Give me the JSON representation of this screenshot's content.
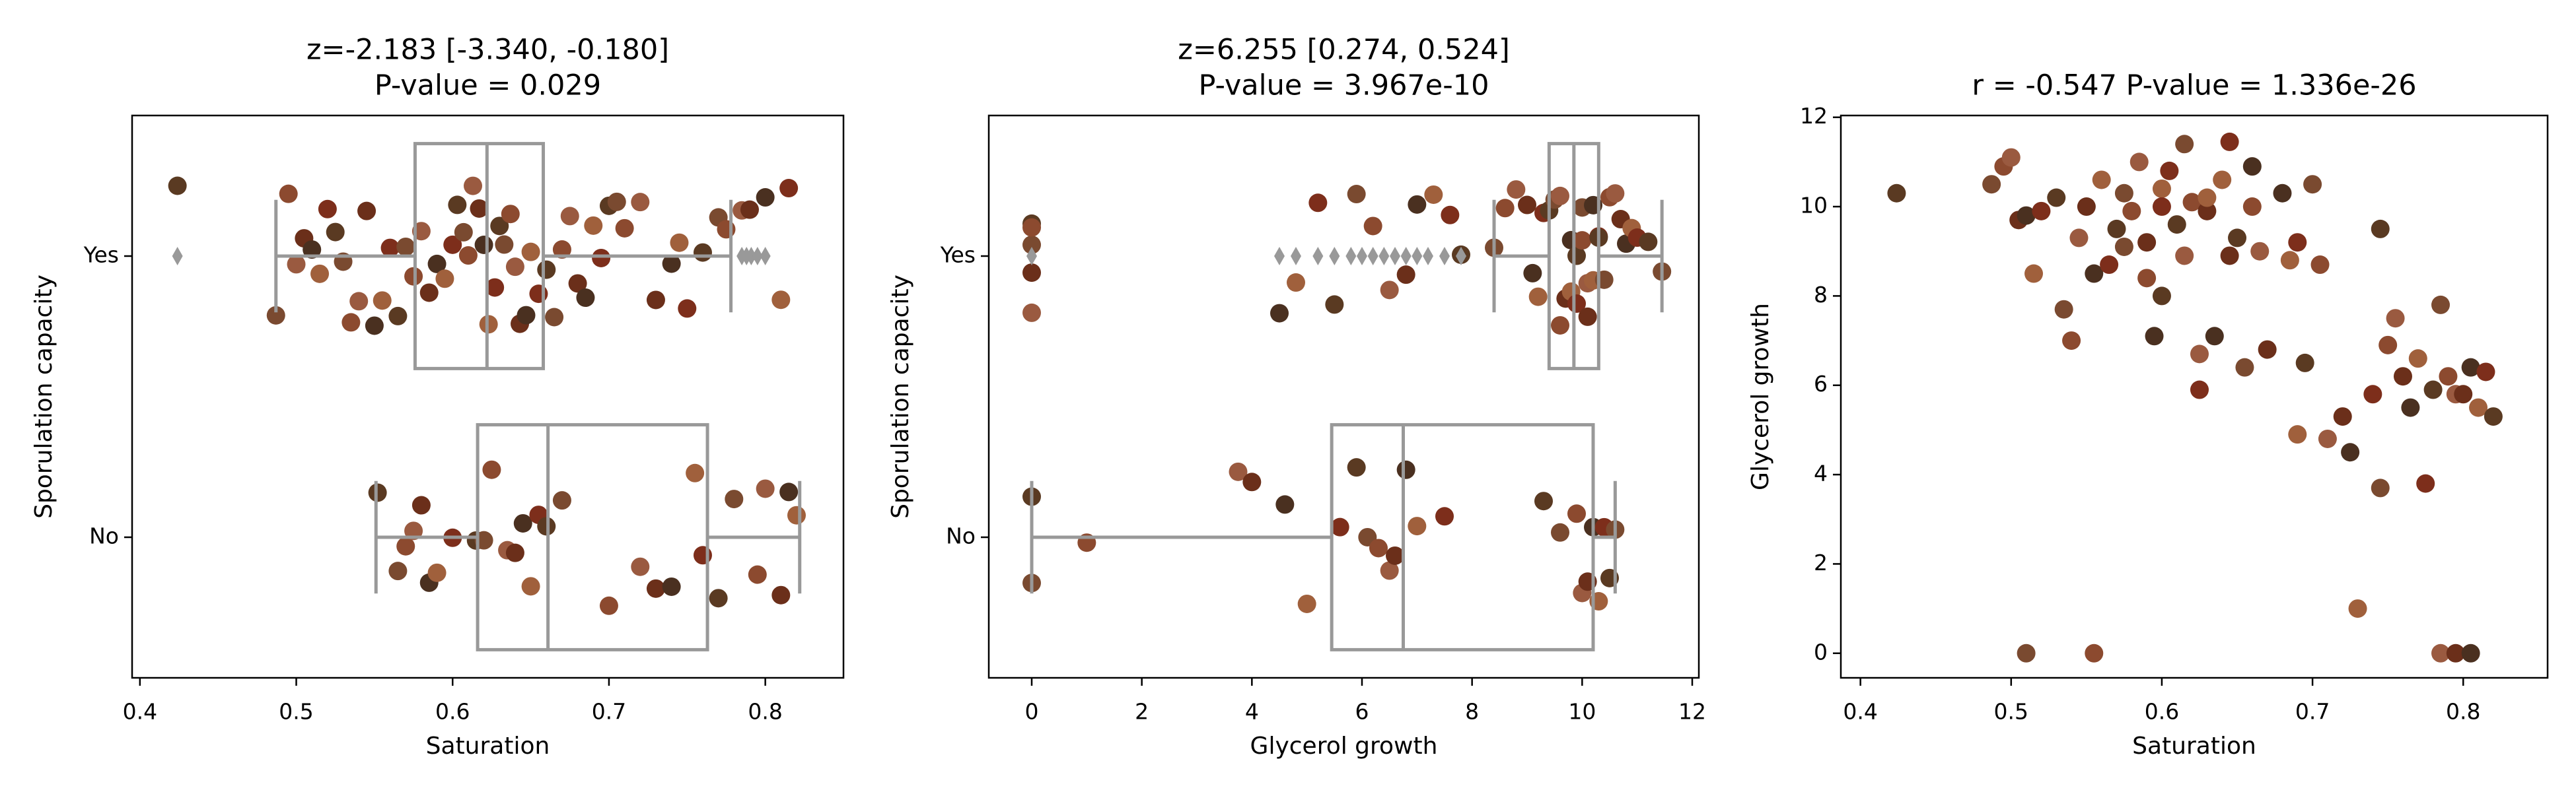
{
  "chart_data": [
    {
      "type": "box-strip",
      "title": "z=-2.183 [-3.340, -0.180]",
      "subtitle": "P-value = 0.029",
      "xlabel": "Saturation",
      "ylabel": "Sporulation capacity",
      "categories": [
        "Yes",
        "No"
      ],
      "xlim": [
        0.395,
        0.85
      ],
      "xticks": [
        0.4,
        0.5,
        0.6,
        0.7,
        0.8
      ],
      "box_color": "#999999",
      "palette": [
        "#5a3a22",
        "#7a4a30",
        "#8c4a2f",
        "#9a5a40",
        "#6b2f1a",
        "#4a3020",
        "#a0603c",
        "#7d2e1b"
      ],
      "groups": [
        {
          "values": [
            0.424,
            0.487,
            0.495,
            0.5,
            0.505,
            0.51,
            0.515,
            0.52,
            0.525,
            0.53,
            0.535,
            0.54,
            0.545,
            0.55,
            0.555,
            0.56,
            0.565,
            0.57,
            0.575,
            0.58,
            0.585,
            0.59,
            0.595,
            0.6,
            0.603,
            0.607,
            0.61,
            0.613,
            0.617,
            0.62,
            0.623,
            0.627,
            0.63,
            0.633,
            0.637,
            0.64,
            0.643,
            0.647,
            0.65,
            0.655,
            0.66,
            0.665,
            0.67,
            0.675,
            0.68,
            0.685,
            0.69,
            0.695,
            0.7,
            0.705,
            0.71,
            0.72,
            0.73,
            0.74,
            0.745,
            0.75,
            0.76,
            0.77,
            0.775,
            0.785,
            0.79,
            0.8,
            0.81,
            0.815
          ],
          "box": {
            "whislo": 0.487,
            "q1": 0.576,
            "med": 0.622,
            "q3": 0.658,
            "whishi": 0.778
          },
          "fliers": [
            0.424,
            0.785,
            0.788,
            0.791,
            0.795,
            0.8
          ]
        },
        {
          "values": [
            0.552,
            0.565,
            0.57,
            0.575,
            0.58,
            0.585,
            0.59,
            0.6,
            0.615,
            0.62,
            0.625,
            0.635,
            0.64,
            0.645,
            0.65,
            0.655,
            0.66,
            0.67,
            0.7,
            0.72,
            0.73,
            0.74,
            0.755,
            0.76,
            0.77,
            0.78,
            0.795,
            0.8,
            0.81,
            0.815,
            0.82
          ],
          "box": {
            "whislo": 0.551,
            "q1": 0.616,
            "med": 0.661,
            "q3": 0.763,
            "whishi": 0.822
          },
          "fliers": []
        }
      ]
    },
    {
      "type": "box-strip",
      "title": "z=6.255 [0.274, 0.524]",
      "subtitle": "P-value = 3.967e-10",
      "xlabel": "Glycerol growth",
      "ylabel": "Sporulation capacity",
      "categories": [
        "Yes",
        "No"
      ],
      "xlim": [
        -0.78,
        12.12
      ],
      "xticks": [
        0,
        2,
        4,
        6,
        8,
        10,
        12
      ],
      "box_color": "#999999",
      "palette": [
        "#5a3a22",
        "#7a4a30",
        "#8c4a2f",
        "#9a5a40",
        "#6b2f1a",
        "#4a3020",
        "#a0603c",
        "#7d2e1b"
      ],
      "groups": [
        {
          "values": [
            0,
            0,
            0,
            0,
            0,
            4.5,
            4.8,
            5.2,
            5.5,
            5.9,
            6.2,
            6.5,
            6.8,
            7.0,
            7.3,
            7.6,
            7.8,
            8.4,
            8.6,
            8.8,
            9.0,
            9.1,
            9.2,
            9.3,
            9.4,
            9.5,
            9.6,
            9.6,
            9.7,
            9.8,
            9.8,
            9.9,
            9.9,
            10.0,
            10.0,
            10.1,
            10.1,
            10.2,
            10.2,
            10.3,
            10.3,
            10.4,
            10.5,
            10.6,
            10.7,
            10.8,
            10.9,
            11.0,
            11.2,
            11.45
          ],
          "box": {
            "whislo": 8.4,
            "q1": 9.4,
            "med": 9.85,
            "q3": 10.3,
            "whishi": 11.45
          },
          "fliers": [
            0,
            4.5,
            4.8,
            5.2,
            5.5,
            5.8,
            6.0,
            6.2,
            6.4,
            6.6,
            6.8,
            7.0,
            7.2,
            7.5,
            7.8
          ]
        },
        {
          "values": [
            0,
            0,
            1.0,
            3.75,
            4.0,
            4.6,
            5.0,
            5.6,
            5.9,
            6.1,
            6.3,
            6.5,
            6.6,
            6.8,
            7.0,
            7.5,
            9.3,
            9.6,
            9.9,
            10.0,
            10.1,
            10.2,
            10.3,
            10.4,
            10.5,
            10.6
          ],
          "box": {
            "whislo": 0,
            "q1": 5.45,
            "med": 6.75,
            "q3": 10.2,
            "whishi": 10.6
          },
          "fliers": []
        }
      ]
    },
    {
      "type": "scatter",
      "title": "r = -0.547 P-value = 1.336e-26",
      "xlabel": "Saturation",
      "ylabel": "Glycerol growth",
      "xlim": [
        0.387,
        0.856
      ],
      "xticks": [
        0.4,
        0.5,
        0.6,
        0.7,
        0.8
      ],
      "ylim": [
        -0.55,
        12.04
      ],
      "yticks": [
        0,
        2,
        4,
        6,
        8,
        10,
        12
      ],
      "palette": [
        "#5a3a22",
        "#7a4a30",
        "#8c4a2f",
        "#9a5a40",
        "#6b2f1a",
        "#4a3020",
        "#a0603c",
        "#7d2e1b"
      ],
      "x": [
        0.424,
        0.487,
        0.495,
        0.5,
        0.505,
        0.51,
        0.515,
        0.52,
        0.53,
        0.535,
        0.54,
        0.545,
        0.55,
        0.555,
        0.56,
        0.565,
        0.57,
        0.575,
        0.58,
        0.585,
        0.59,
        0.595,
        0.6,
        0.605,
        0.61,
        0.615,
        0.62,
        0.625,
        0.63,
        0.635,
        0.64,
        0.645,
        0.65,
        0.655,
        0.66,
        0.665,
        0.67,
        0.68,
        0.685,
        0.69,
        0.695,
        0.7,
        0.705,
        0.71,
        0.72,
        0.725,
        0.73,
        0.74,
        0.745,
        0.745,
        0.75,
        0.755,
        0.76,
        0.765,
        0.77,
        0.775,
        0.78,
        0.785,
        0.79,
        0.795,
        0.8,
        0.805,
        0.81,
        0.815,
        0.82,
        0.51,
        0.555,
        0.785,
        0.795,
        0.805,
        0.69,
        0.625,
        0.6,
        0.575,
        0.59,
        0.615,
        0.645,
        0.66,
        0.63,
        0.6
      ],
      "values": [
        10.3,
        10.5,
        10.9,
        11.1,
        9.7,
        9.8,
        8.5,
        9.9,
        10.2,
        7.7,
        7.0,
        9.3,
        10.0,
        8.5,
        10.6,
        8.7,
        9.5,
        10.3,
        9.9,
        11.0,
        9.2,
        7.1,
        10.4,
        10.8,
        9.6,
        11.4,
        10.1,
        6.7,
        9.9,
        7.1,
        10.6,
        11.45,
        9.3,
        6.4,
        10.0,
        9.0,
        6.8,
        10.3,
        8.8,
        9.2,
        6.5,
        10.5,
        8.7,
        4.8,
        5.3,
        4.5,
        1.0,
        5.8,
        9.5,
        3.7,
        6.9,
        7.5,
        6.2,
        5.5,
        6.6,
        3.8,
        5.9,
        7.8,
        6.2,
        5.8,
        5.8,
        6.4,
        5.5,
        6.3,
        5.3,
        0,
        0,
        0,
        0,
        0,
        4.9,
        5.9,
        8.0,
        9.1,
        8.4,
        8.9,
        8.9,
        10.9,
        10.2,
        10.0
      ]
    }
  ]
}
